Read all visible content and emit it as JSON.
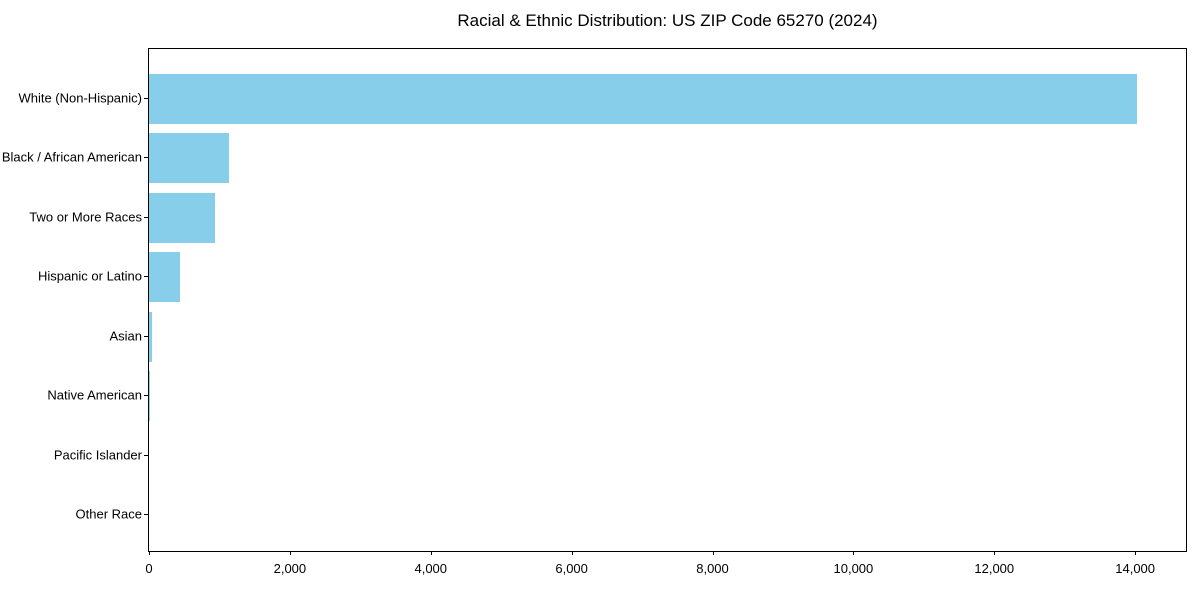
{
  "chart_data": {
    "type": "bar",
    "orientation": "horizontal",
    "title": "Racial & Ethnic Distribution: US ZIP Code 65270 (2024)",
    "categories": [
      "White (Non-Hispanic)",
      "Black / African American",
      "Two or More Races",
      "Hispanic or Latino",
      "Asian",
      "Native American",
      "Pacific Islander",
      "Other Race"
    ],
    "values": [
      14020,
      1140,
      930,
      440,
      40,
      15,
      0,
      0
    ],
    "xlabel": "",
    "ylabel": "",
    "xlim": [
      0,
      14722
    ],
    "x_ticks": [
      0,
      2000,
      4000,
      6000,
      8000,
      10000,
      12000,
      14000
    ],
    "x_tick_labels": [
      "0",
      "2,000",
      "4,000",
      "6,000",
      "8,000",
      "10,000",
      "12,000",
      "14,000"
    ],
    "bar_color": "#87CEEB",
    "axis_color": "#000000",
    "background_color": "#ffffff",
    "grid": false,
    "legend": null,
    "largest_bar_at": "top"
  }
}
